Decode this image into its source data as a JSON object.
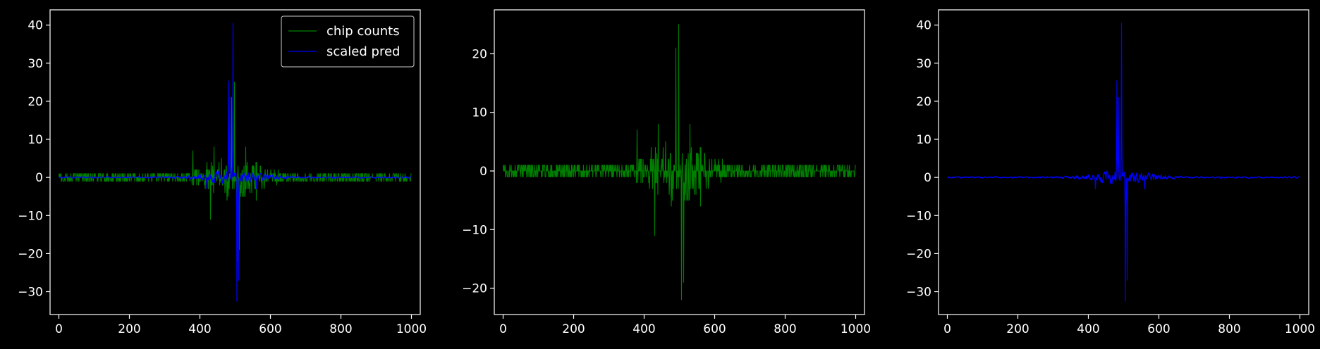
{
  "chart_data": [
    {
      "type": "line",
      "title": "",
      "xlabel": "",
      "ylabel": "",
      "xlim": [
        -25,
        1025
      ],
      "ylim": [
        -36,
        44
      ],
      "xticks": [
        0,
        200,
        400,
        600,
        800,
        1000
      ],
      "yticks": [
        -30,
        -20,
        -10,
        0,
        10,
        20,
        30,
        40
      ],
      "legend": {
        "location": "upper right",
        "entries": [
          "chip counts",
          "scaled pred"
        ]
      },
      "series": [
        {
          "name": "chip counts",
          "color": "#008000",
          "style": "noisy",
          "x_range": [
            0,
            1000
          ],
          "n_points": 1001,
          "peaks": [
            {
              "x": 380,
              "y": 7
            },
            {
              "x": 430,
              "y": -11
            },
            {
              "x": 440,
              "y": 8
            },
            {
              "x": 490,
              "y": 21
            },
            {
              "x": 498,
              "y": 25
            },
            {
              "x": 506,
              "y": -22
            },
            {
              "x": 512,
              "y": -19
            },
            {
              "x": 530,
              "y": 8
            },
            {
              "x": 560,
              "y": -6
            }
          ]
        },
        {
          "name": "scaled pred",
          "color": "#0000ff",
          "style": "smooth",
          "x_range": [
            0,
            1000
          ],
          "n_points": 1001,
          "peaks": [
            {
              "x": 481,
              "y": 25.4
            },
            {
              "x": 485,
              "y": 21
            },
            {
              "x": 494,
              "y": 40.5
            },
            {
              "x": 505,
              "y": -32.5
            },
            {
              "x": 510,
              "y": -27
            },
            {
              "x": 420,
              "y": -3
            },
            {
              "x": 560,
              "y": -3
            }
          ]
        }
      ]
    },
    {
      "type": "line",
      "title": "",
      "xlabel": "",
      "ylabel": "",
      "xlim": [
        -25,
        1025
      ],
      "ylim": [
        -24.5,
        27.5
      ],
      "xticks": [
        0,
        200,
        400,
        600,
        800,
        1000
      ],
      "yticks": [
        -20,
        -10,
        0,
        10,
        20
      ],
      "series": [
        {
          "name": "",
          "color": "#008000",
          "style": "noisy",
          "x_range": [
            0,
            1000
          ],
          "n_points": 1001,
          "peaks": [
            {
              "x": 380,
              "y": 7
            },
            {
              "x": 430,
              "y": -11
            },
            {
              "x": 440,
              "y": 8
            },
            {
              "x": 490,
              "y": 21
            },
            {
              "x": 498,
              "y": 25
            },
            {
              "x": 506,
              "y": -22
            },
            {
              "x": 512,
              "y": -19
            },
            {
              "x": 530,
              "y": 8
            },
            {
              "x": 560,
              "y": -6
            }
          ]
        }
      ]
    },
    {
      "type": "line",
      "title": "",
      "xlabel": "",
      "ylabel": "",
      "xlim": [
        -25,
        1025
      ],
      "ylim": [
        -36,
        44
      ],
      "xticks": [
        0,
        200,
        400,
        600,
        800,
        1000
      ],
      "yticks": [
        -30,
        -20,
        -10,
        0,
        10,
        20,
        30,
        40
      ],
      "series": [
        {
          "name": "",
          "color": "#0000ff",
          "style": "smooth",
          "x_range": [
            0,
            1000
          ],
          "n_points": 1001,
          "peaks": [
            {
              "x": 481,
              "y": 25.4
            },
            {
              "x": 485,
              "y": 21
            },
            {
              "x": 494,
              "y": 40.5
            },
            {
              "x": 505,
              "y": -32.5
            },
            {
              "x": 510,
              "y": -27
            },
            {
              "x": 420,
              "y": -3
            },
            {
              "x": 560,
              "y": -3
            }
          ]
        }
      ]
    }
  ]
}
